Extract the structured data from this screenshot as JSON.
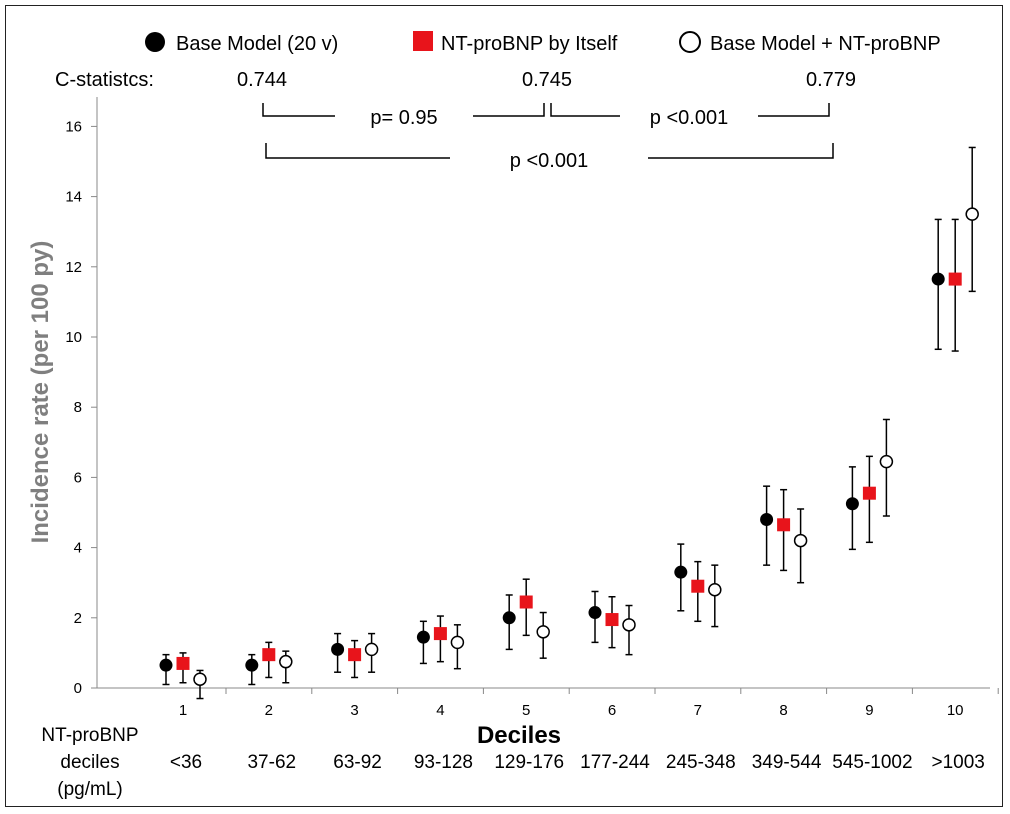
{
  "chart_data": {
    "type": "scatter",
    "xlabel": "Deciles",
    "ylabel": "Incidence rate (per 100 py)",
    "ylim": [
      0,
      17
    ],
    "yticks": [
      0,
      2,
      4,
      6,
      8,
      10,
      12,
      14,
      16
    ],
    "categories": [
      "1",
      "2",
      "3",
      "4",
      "5",
      "6",
      "7",
      "8",
      "9",
      "10"
    ],
    "decile_label_title": [
      "NT-proBNP",
      "deciles",
      "(pg/mL)"
    ],
    "decile_ranges": [
      "<36",
      "37-62",
      "63-92",
      "93-128",
      "129-176",
      "177-244",
      "245-348",
      "349-544",
      "545-1002",
      ">1003"
    ],
    "legend_position": "top",
    "series": [
      {
        "name": "Base Model (20 v)",
        "marker": "filled-circle",
        "color": "#000000",
        "values": [
          0.65,
          0.65,
          1.1,
          1.45,
          2.0,
          2.15,
          3.3,
          4.8,
          5.25,
          11.65
        ],
        "lower": [
          0.1,
          0.1,
          0.45,
          0.7,
          1.1,
          1.3,
          2.2,
          3.5,
          3.95,
          9.65
        ],
        "upper": [
          0.95,
          0.95,
          1.55,
          1.9,
          2.65,
          2.75,
          4.1,
          5.75,
          6.3,
          13.35
        ]
      },
      {
        "name": "NT-proBNP by Itself",
        "marker": "red-square",
        "color": "#e8141b",
        "values": [
          0.7,
          0.95,
          0.95,
          1.55,
          2.45,
          1.95,
          2.9,
          4.65,
          5.55,
          11.65
        ],
        "lower": [
          0.15,
          0.3,
          0.3,
          0.75,
          1.5,
          1.15,
          1.9,
          3.35,
          4.15,
          9.6
        ],
        "upper": [
          1.0,
          1.3,
          1.35,
          2.05,
          3.1,
          2.6,
          3.6,
          5.65,
          6.6,
          13.35
        ]
      },
      {
        "name": "Base Model + NT-proBNP",
        "marker": "open-circle",
        "color": "#000000",
        "values": [
          0.25,
          0.75,
          1.1,
          1.3,
          1.6,
          1.8,
          2.8,
          4.2,
          6.45,
          13.5
        ],
        "lower": [
          -0.3,
          0.15,
          0.45,
          0.55,
          0.85,
          0.95,
          1.75,
          3.0,
          4.9,
          11.3
        ],
        "upper": [
          0.5,
          1.05,
          1.55,
          1.8,
          2.15,
          2.35,
          3.5,
          5.1,
          7.65,
          15.4
        ]
      }
    ],
    "c_statistics_label": "C-statistcs:",
    "c_statistics": [
      "0.744",
      "0.745",
      "0.779"
    ],
    "comparisons": [
      {
        "label": "p= 0.95",
        "from": "Base Model (20 v)",
        "to": "NT-proBNP by Itself"
      },
      {
        "label": "p <0.001",
        "from": "NT-proBNP by Itself",
        "to": "Base Model + NT-proBNP"
      },
      {
        "label": "p <0.001",
        "from": "Base Model (20 v)",
        "to": "Base Model + NT-proBNP"
      }
    ]
  }
}
